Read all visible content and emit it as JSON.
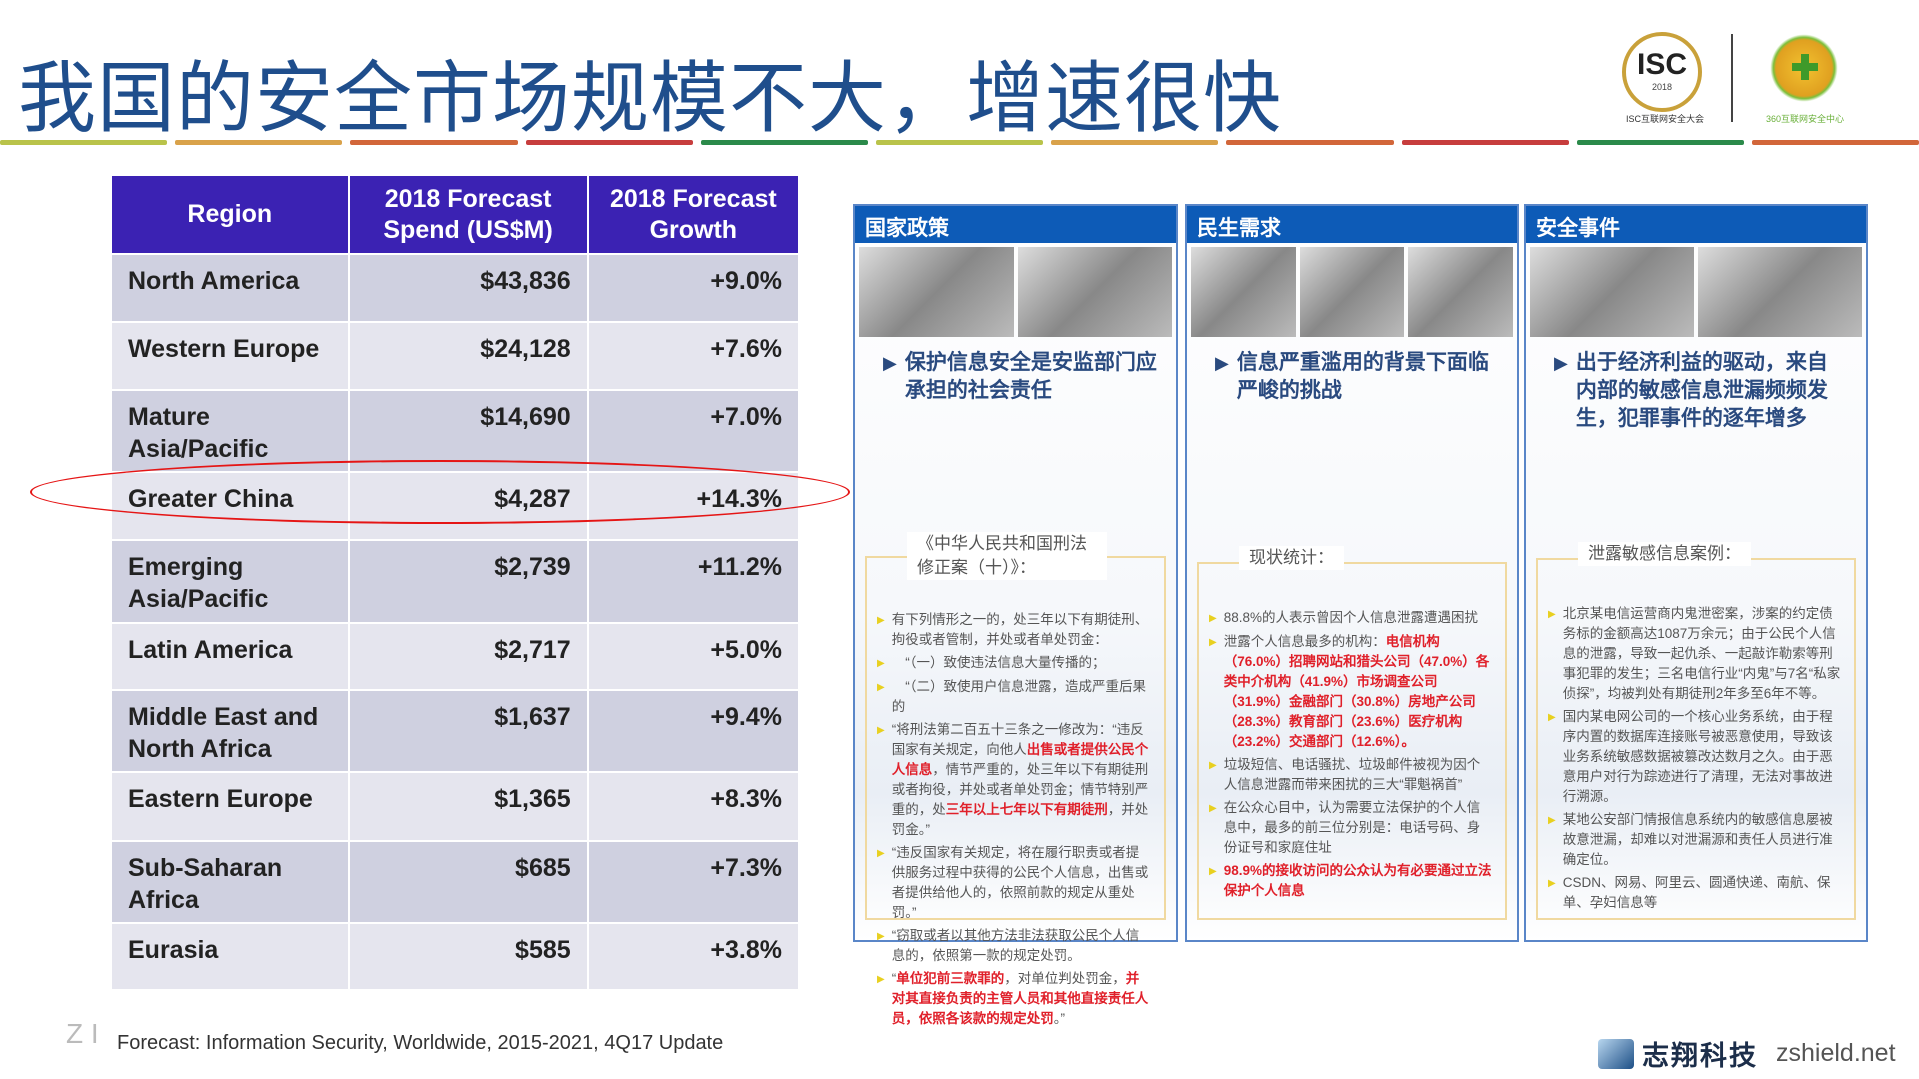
{
  "title": "我国的安全市场规模不大，增速很快",
  "logos": {
    "isc_text": "ISC",
    "isc_year": "2018",
    "isc_caption": "ISC互联网安全大会",
    "caption_360": "360互联网安全中心"
  },
  "deco_colors": [
    "#b9c34a",
    "#d9a24a",
    "#d2663a",
    "#c73d3d",
    "#2b8a4a",
    "#b9c34a",
    "#d9a24a",
    "#d2663a",
    "#c73d3d",
    "#2b8a4a",
    "#d2663a"
  ],
  "table": {
    "headers": [
      "Region",
      "2018 Forecast Spend (US$M)",
      "2018 Forecast Growth"
    ],
    "rows": [
      [
        "North America",
        "$43,836",
        "+9.0%"
      ],
      [
        "Western Europe",
        "$24,128",
        "+7.6%"
      ],
      [
        "Mature Asia/Pacific",
        "$14,690",
        "+7.0%"
      ],
      [
        "Greater China",
        "$4,287",
        "+14.3%"
      ],
      [
        "Emerging Asia/Pacific",
        "$2,739",
        "+11.2%"
      ],
      [
        "Latin America",
        "$2,717",
        "+5.0%"
      ],
      [
        "Middle East and North Africa",
        "$1,637",
        "+9.4%"
      ],
      [
        "Eastern Europe",
        "$1,365",
        "+8.3%"
      ],
      [
        "Sub-Saharan Africa",
        "$685",
        "+7.3%"
      ],
      [
        "Eurasia",
        "$585",
        "+3.8%"
      ]
    ],
    "highlighted_row": "Greater China",
    "header_color": "#3b22b3",
    "highlight_color": "#e51515"
  },
  "source": "Forecast: Information Security, Worldwide, 2015-2021, 4Q17 Update",
  "source_mark": "Z I",
  "panels": [
    {
      "title": "国家政策",
      "heading": "保护信息安全是安监部门应承担的社会责任",
      "box_label": "《中华人民共和国刑法修正案（十）》：",
      "bullets": [
        [
          {
            "t": "有下列情形之一的，处三年以下有期徒刑、拘役或者管制，并处或者单处罚金："
          }
        ],
        [
          {
            "t": "　“（一）致使违法信息大量传播的；"
          }
        ],
        [
          {
            "t": "　“（二）致使用户信息泄露，造成严重后果的"
          }
        ],
        [
          {
            "t": "“将刑法第二百五十三条之一修改为：“违反国家有关规定，向他人"
          },
          {
            "t": "出售或者提供公民个人信息",
            "r": true
          },
          {
            "t": "，情节严重的，处三年以下有期徒刑或者拘役，并处或者单处罚金；情节特别严重的，处"
          },
          {
            "t": "三年以上七年以下有期徒刑",
            "r": true
          },
          {
            "t": "，并处罚金。”"
          }
        ],
        [
          {
            "t": "“违反国家有关规定，将在履行职责或者提供服务过程中获得的公民个人信息，出售或者提供给他人的，依照前款的规定从重处罚。”"
          }
        ],
        [
          {
            "t": "“窃取或者以其他方法非法获取公民个人信息的，依照第一款的规定处罚。"
          }
        ],
        [
          {
            "t": "“"
          },
          {
            "t": "单位犯前三款罪的",
            "r": true
          },
          {
            "t": "，对单位判处罚金，"
          },
          {
            "t": "并对其直接负责的主管人员和其他直接责任人员，依照各该款的规定处罚",
            "r": true
          },
          {
            "t": "。”"
          }
        ]
      ]
    },
    {
      "title": "民生需求",
      "heading": "信息严重滥用的背景下面临严峻的挑战",
      "box_label": "现状统计：",
      "bullets": [
        [
          {
            "t": "88.8%的人表示曾因个人信息泄露遭遇困扰"
          }
        ],
        [
          {
            "t": "泄露个人信息最多的机构："
          },
          {
            "t": "电信机构（76.0%）招聘网站和猎头公司（47.0%）各类中介机构（41.9%）市场调查公司（31.9%）金融部门（30.8%）房地产公司（28.3%）教育部门（23.6%）医疗机构（23.2%）交通部门（12.6%）。",
            "r": true
          }
        ],
        [
          {
            "t": "垃圾短信、电话骚扰、垃圾邮件被视为因个人信息泄露而带来困扰的三大“罪魁祸首”"
          }
        ],
        [
          {
            "t": "在公众心目中，认为需要立法保护的个人信息中，最多的前三位分别是：电话号码、身份证号和家庭住址"
          }
        ],
        [
          {
            "t": "98.9%的接收访问的公众认为有必要通过立法保护个人信息",
            "r": true
          }
        ]
      ]
    },
    {
      "title": "安全事件",
      "heading": "出于经济利益的驱动，来自内部的敏感信息泄漏频频发生，犯罪事件的逐年增多",
      "box_label": "泄露敏感信息案例：",
      "bullets": [
        [
          {
            "t": "北京某电信运营商内鬼泄密案，涉案的约定债务标的金额高达1087万余元；由于公民个人信息的泄露，导致一起仇杀、一起敲诈勒索等刑事犯罪的发生；三名电信行业“内鬼”与7名“私家侦探”，均被判处有期徒刑2年多至6年不等。"
          }
        ],
        [
          {
            "t": "国内某电网公司的一个核心业务系统，由于程序内置的数据库连接账号被恶意使用，导致该业务系统敏感数据被篡改达数月之久。由于恶意用户对行为踪迹进行了清理，无法对事故进行溯源。"
          }
        ],
        [
          {
            "t": "某地公安部门情报信息系统内的敏感信息屡被故意泄漏，却难以对泄漏源和责任人员进行准确定位。"
          }
        ],
        [
          {
            "t": "CSDN、网易、阿里云、圆通快递、南航、保单、孕妇信息等"
          }
        ]
      ]
    }
  ],
  "brand": {
    "name": "志翔科技",
    "url": "zshield.net"
  }
}
